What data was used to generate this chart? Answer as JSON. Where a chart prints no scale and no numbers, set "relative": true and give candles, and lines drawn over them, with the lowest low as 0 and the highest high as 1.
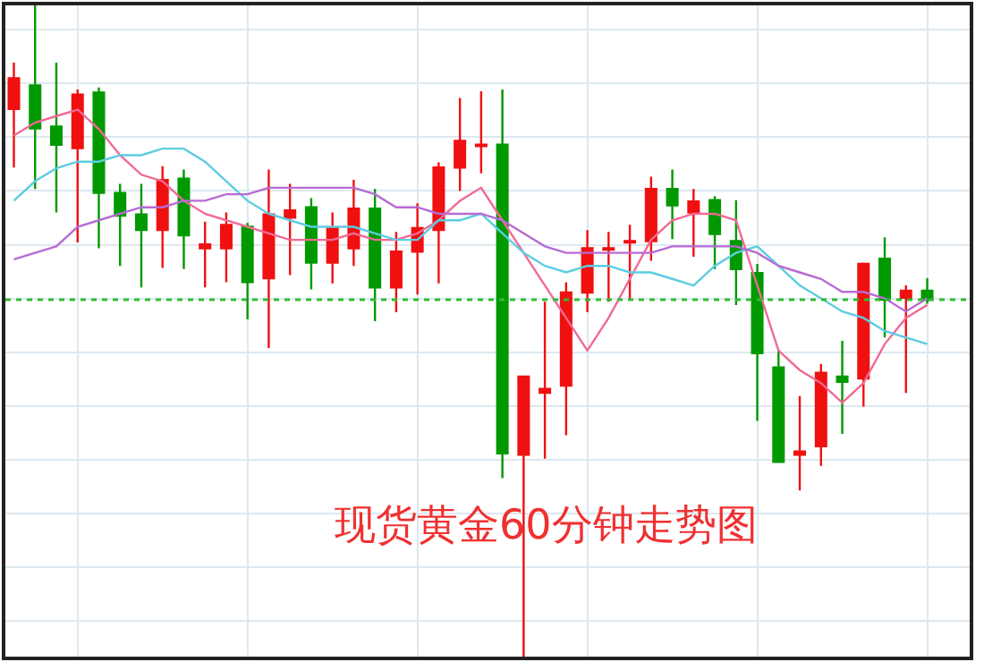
{
  "chart_data": {
    "type": "candlestick",
    "title": "现货黄金60分钟走势图",
    "relative": true,
    "grid": true,
    "categories": [
      null,
      null,
      null,
      null,
      null,
      null,
      null,
      null,
      null,
      null,
      null,
      null,
      null,
      null,
      null,
      null,
      null,
      null,
      null,
      null,
      null,
      null,
      null,
      null,
      null,
      null,
      null,
      null,
      null,
      null,
      null,
      null,
      null,
      null,
      null,
      null,
      null,
      null,
      null,
      null,
      null,
      null,
      null,
      null
    ],
    "ohlc": [
      [
        0.841,
        0.912,
        0.751,
        0.888
      ],
      [
        0.877,
        1,
        0.718,
        0.811
      ],
      [
        0.814,
        0.912,
        0.682,
        0.786
      ],
      [
        0.781,
        0.871,
        0.636,
        0.863
      ],
      [
        0.866,
        0.874,
        0.627,
        0.712
      ],
      [
        0.712,
        0.726,
        0.6,
        0.677
      ],
      [
        0.679,
        0.726,
        0.567,
        0.655
      ],
      [
        0.655,
        0.753,
        0.597,
        0.732
      ],
      [
        0.734,
        0.748,
        0.595,
        0.647
      ],
      [
        0.627,
        0.668,
        0.567,
        0.633
      ],
      [
        0.627,
        0.682,
        0.575,
        0.663
      ],
      [
        0.66,
        0.666,
        0.518,
        0.575
      ],
      [
        0.581,
        0.748,
        0.474,
        0.679
      ],
      [
        0.674,
        0.726,
        0.586,
        0.685
      ],
      [
        0.69,
        0.704,
        0.564,
        0.605
      ],
      [
        0.605,
        0.682,
        0.573,
        0.658
      ],
      [
        0.627,
        0.732,
        0.6,
        0.688
      ],
      [
        0.688,
        0.718,
        0.515,
        0.567
      ],
      [
        0.567,
        0.652,
        0.529,
        0.622
      ],
      [
        0.622,
        0.696,
        0.556,
        0.658
      ],
      [
        0.655,
        0.759,
        0.573,
        0.751
      ],
      [
        0.751,
        0.858,
        0.715,
        0.792
      ],
      [
        0.784,
        0.868,
        0.742,
        0.786
      ],
      [
        0.786,
        0.871,
        0.274,
        0.312
      ],
      [
        0.31,
        0.43,
        0,
        0.43
      ],
      [
        0.405,
        0.545,
        0.304,
        0.411
      ],
      [
        0.416,
        0.575,
        0.34,
        0.559
      ],
      [
        0.559,
        0.655,
        0.529,
        0.627
      ],
      [
        0.625,
        0.652,
        0.545,
        0.627
      ],
      [
        0.636,
        0.663,
        0.548,
        0.638
      ],
      [
        0.638,
        0.737,
        0.608,
        0.718
      ],
      [
        0.718,
        0.748,
        0.641,
        0.693
      ],
      [
        0.682,
        0.718,
        0.614,
        0.699
      ],
      [
        0.701,
        0.707,
        0.595,
        0.649
      ],
      [
        0.638,
        0.701,
        0.54,
        0.595
      ],
      [
        0.589,
        0.603,
        0.362,
        0.466
      ],
      [
        0.444,
        0.471,
        0.299,
        0.299
      ],
      [
        0.31,
        0.4,
        0.255,
        0.315
      ],
      [
        0.323,
        0.449,
        0.293,
        0.436
      ],
      [
        0.43,
        0.485,
        0.342,
        0.422
      ],
      [
        0.427,
        0.605,
        0.384,
        0.603
      ],
      [
        0.611,
        0.644,
        0.49,
        0.548
      ],
      [
        0.551,
        0.57,
        0.405,
        0.562
      ],
      [
        0.562,
        0.581,
        0.542,
        0.548
      ]
    ],
    "colors": [
      "#f01010",
      "#009900",
      "#009900",
      "#f01010",
      "#009900",
      "#009900",
      "#009900",
      "#f01010",
      "#009900",
      "#f01010",
      "#f01010",
      "#009900",
      "#f01010",
      "#f01010",
      "#009900",
      "#f01010",
      "#f01010",
      "#009900",
      "#f01010",
      "#f01010",
      "#f01010",
      "#f01010",
      "#f01010",
      "#009900",
      "#f01010",
      "#f01010",
      "#f01010",
      "#f01010",
      "#f01010",
      "#f01010",
      "#f01010",
      "#009900",
      "#f01010",
      "#009900",
      "#009900",
      "#009900",
      "#009900",
      "#f01010",
      "#f01010",
      "#009900",
      "#f01010",
      "#009900",
      "#f01010",
      "#009900"
    ],
    "series": [
      {
        "type": "line",
        "color": "#f06a96",
        "values": [
          0.8,
          0.82,
          0.83,
          0.84,
          0.81,
          0.77,
          0.74,
          0.73,
          0.7,
          0.68,
          0.67,
          0.66,
          0.65,
          0.64,
          0.64,
          0.64,
          0.65,
          0.64,
          0.64,
          0.65,
          0.67,
          0.7,
          0.72,
          0.67,
          0.62,
          0.57,
          0.52,
          0.47,
          0.52,
          0.58,
          0.64,
          0.67,
          0.68,
          0.68,
          0.67,
          0.57,
          0.47,
          0.44,
          0.42,
          0.39,
          0.42,
          0.48,
          0.52,
          0.54
        ]
      },
      {
        "type": "line",
        "color": "#5ccde0",
        "values": [
          0.7,
          0.73,
          0.75,
          0.76,
          0.76,
          0.77,
          0.77,
          0.78,
          0.78,
          0.76,
          0.73,
          0.7,
          0.68,
          0.67,
          0.66,
          0.66,
          0.66,
          0.65,
          0.64,
          0.64,
          0.67,
          0.67,
          0.68,
          0.65,
          0.62,
          0.6,
          0.59,
          0.6,
          0.6,
          0.59,
          0.59,
          0.58,
          0.57,
          0.6,
          0.62,
          0.63,
          0.6,
          0.57,
          0.55,
          0.53,
          0.52,
          0.5,
          0.49,
          0.48
        ]
      },
      {
        "type": "line",
        "color": "#b86ad4",
        "values": [
          0.61,
          0.62,
          0.63,
          0.66,
          0.67,
          0.68,
          0.69,
          0.69,
          0.7,
          0.7,
          0.71,
          0.71,
          0.72,
          0.72,
          0.72,
          0.72,
          0.72,
          0.71,
          0.69,
          0.69,
          0.68,
          0.68,
          0.68,
          0.67,
          0.65,
          0.63,
          0.62,
          0.62,
          0.62,
          0.62,
          0.62,
          0.63,
          0.63,
          0.63,
          0.63,
          0.62,
          0.6,
          0.59,
          0.58,
          0.56,
          0.56,
          0.55,
          0.53,
          0.55
        ]
      }
    ],
    "ref_lines": [
      {
        "axis": "y",
        "value": 0.548,
        "color": "#33bb33",
        "line_style": "dotted"
      }
    ]
  }
}
